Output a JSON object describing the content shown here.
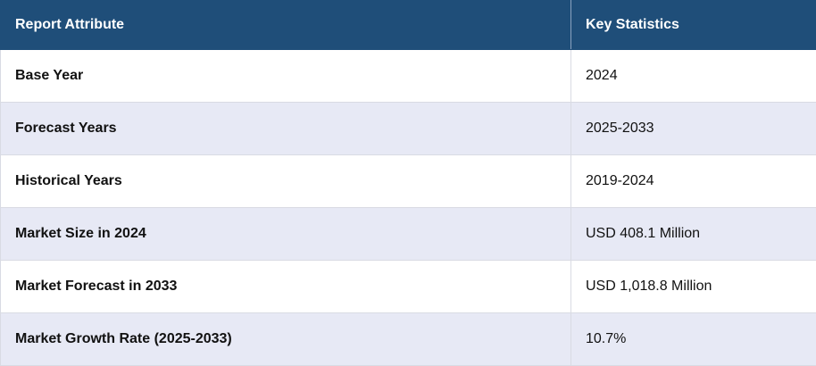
{
  "table": {
    "header": [
      "Report Attribute",
      "Key Statistics"
    ],
    "rows": [
      [
        "Base Year",
        "2024"
      ],
      [
        "Forecast Years",
        "2025-2033"
      ],
      [
        "Historical Years",
        "2019-2024"
      ],
      [
        "Market Size in 2024",
        "USD 408.1 Million"
      ],
      [
        "Market Forecast in 2033",
        "USD 1,018.8 Million"
      ],
      [
        "Market Growth Rate (2025-2033)",
        "10.7%"
      ]
    ]
  }
}
